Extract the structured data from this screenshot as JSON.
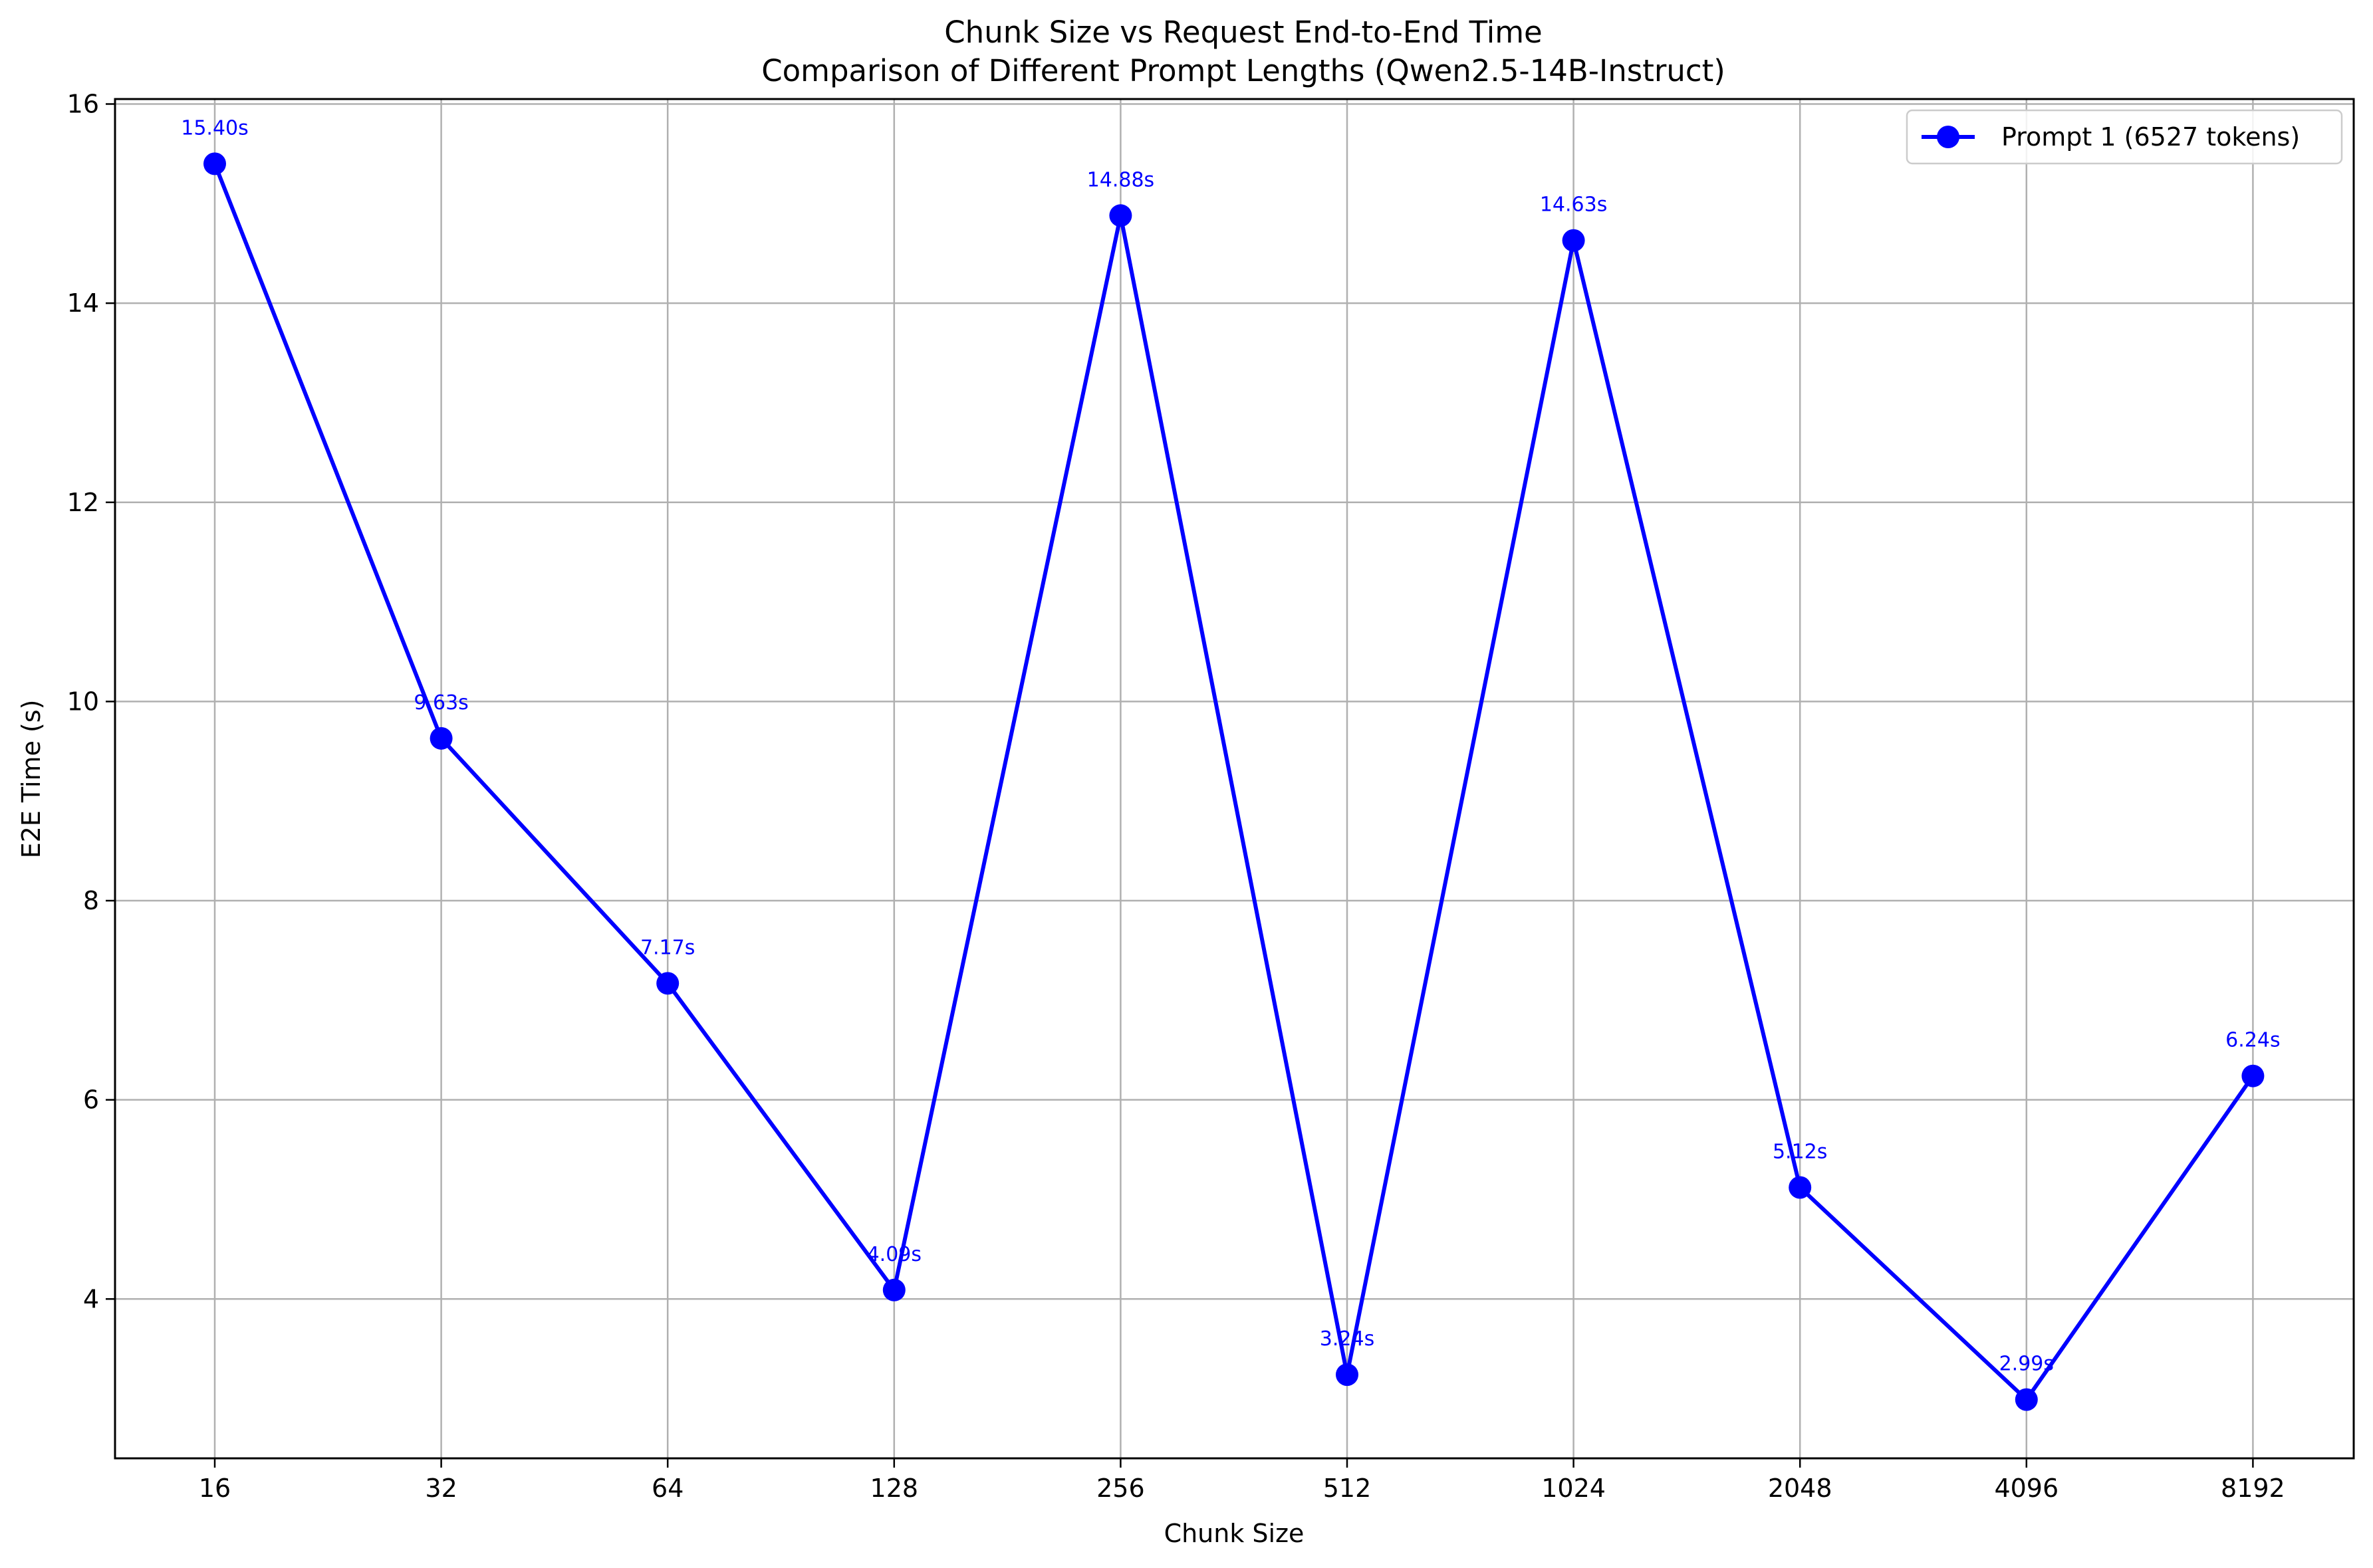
{
  "chart_data": {
    "type": "line",
    "title": "Chunk Size vs Request End-to-End Time",
    "subtitle": "Comparison of Different Prompt Lengths (Qwen2.5-14B-Instruct)",
    "xlabel": "Chunk Size",
    "ylabel": "E2E Time (s)",
    "categories": [
      "16",
      "32",
      "64",
      "128",
      "256",
      "512",
      "1024",
      "2048",
      "4096",
      "8192"
    ],
    "y_ticks": [
      "4",
      "6",
      "8",
      "10",
      "12",
      "14",
      "16"
    ],
    "ylim": [
      2.4,
      16.05
    ],
    "grid": true,
    "legend_position": "top-right",
    "series": [
      {
        "name": "Prompt 1 (6527 tokens)",
        "color": "#0000ff",
        "values": [
          15.4,
          9.63,
          7.17,
          4.09,
          14.88,
          3.24,
          14.63,
          5.12,
          2.99,
          6.24
        ],
        "labels": [
          "15.40s",
          "9.63s",
          "7.17s",
          "4.09s",
          "14.88s",
          "3.24s",
          "14.63s",
          "5.12s",
          "2.99s",
          "6.24s"
        ]
      }
    ]
  }
}
